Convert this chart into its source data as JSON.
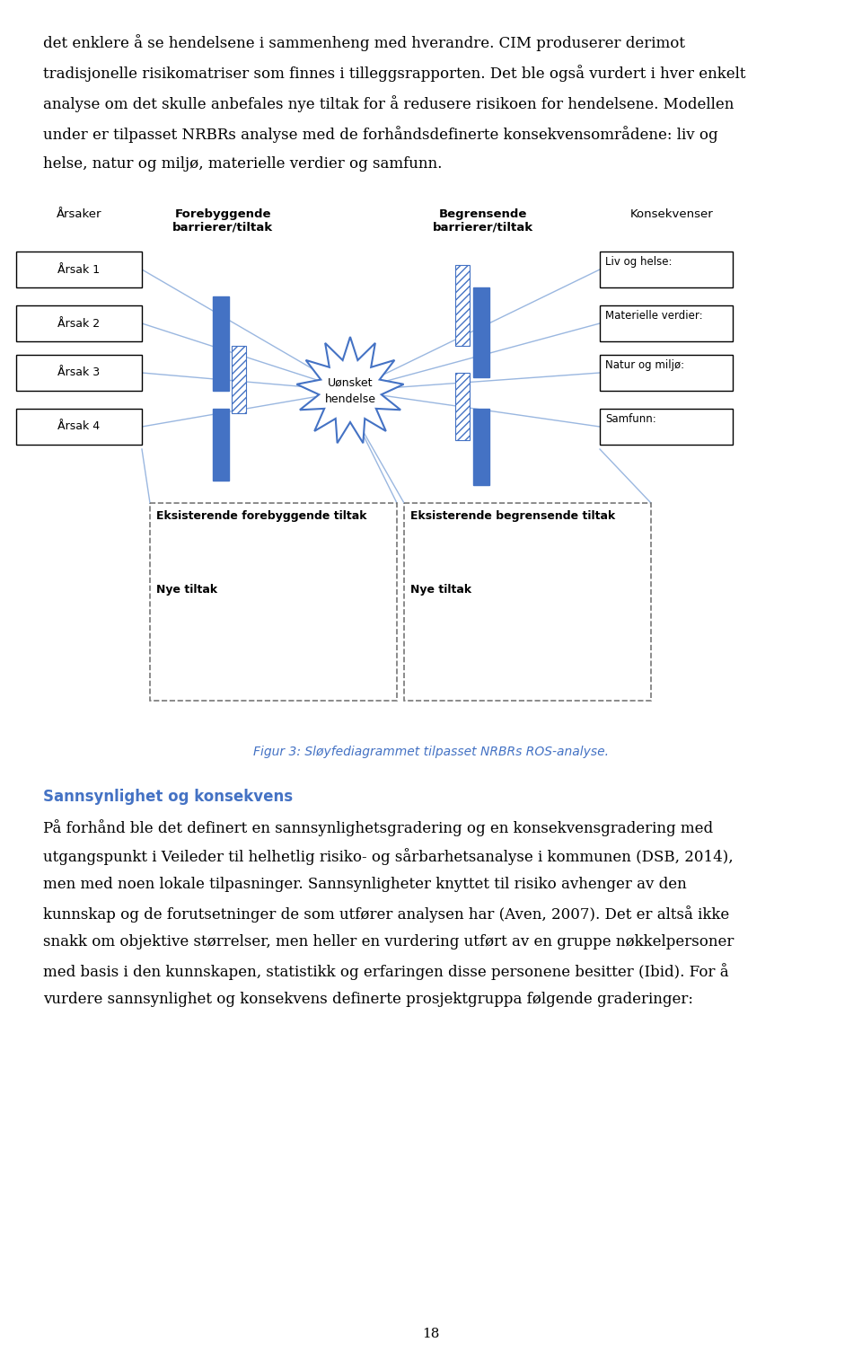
{
  "page_text_top": [
    "det enklere å se hendelsene i sammenheng med hverandre. CIM produserer derimot",
    "tradisjonelle risikomatriser som finnes i tilleggsrapporten. Det ble også vurdert i hver enkelt",
    "analyse om det skulle anbefales nye tiltak for å redusere risikoen for hendelsene. Modellen",
    "under er tilpasset NRBRs analyse med de forhåndsdefinerte konsekvensområdene: liv og",
    "helse, natur og miljø, materielle verdier og samfunn."
  ],
  "header_labels": {
    "arsaker": "Årsaker",
    "forebyggende": "Forebyggende\nbarrierer/tiltak",
    "begrensende": "Begrensende\nbarrierer/tiltak",
    "konsekvenser": "Konsekvenser"
  },
  "cause_boxes": [
    "Årsak 1",
    "Årsak 2",
    "Årsak 3",
    "Årsak 4"
  ],
  "consequence_boxes": [
    "Liv og helse:",
    "Materielle verdier:",
    "Natur og miljø:",
    "Samfunn:"
  ],
  "center_label": "Uønsket\nhendelse",
  "bottom_boxes": {
    "left_title": "Eksisterende forebyggende tiltak",
    "left_sub": "Nye tiltak",
    "right_title": "Eksisterende begrensende tiltak",
    "right_sub": "Nye tiltak"
  },
  "figure_caption": "Figur 3: Sløyfediagrammet tilpasset NRBRs ROS-analyse.",
  "section_heading": "Sannsynlighet og konsekvens",
  "body_text": [
    "På forhånd ble det definert en sannsynlighetsgradering og en konsekvensgradering med",
    "utgangspunkt i Veileder til helhetlig risiko- og sårbarhetsanalyse i kommunen (DSB, 2014),",
    "men med noen lokale tilpasninger. Sannsynligheter knyttet til risiko avhenger av den",
    "kunnskap og de forutsetninger de som utfører analysen har (Aven, 2007). Det er altså ikke",
    "snakk om objektive størrelser, men heller en vurdering utført av en gruppe nøkkelpersoner",
    "med basis i den kunnskapen, statistikk og erfaringen disse personene besitter (Ibid). For å",
    "vurdere sannsynlighet og konsekvens definerte prosjektgruppa følgende graderinger:"
  ],
  "page_number": "18",
  "blue_color": "#4472C4",
  "box_border_color": "#000000",
  "dashed_border_color": "#777777",
  "text_color": "#000000",
  "caption_color": "#4472C4",
  "section_heading_color": "#4472C4",
  "bg_color": "#ffffff",
  "line_color": "#9ab7e0"
}
